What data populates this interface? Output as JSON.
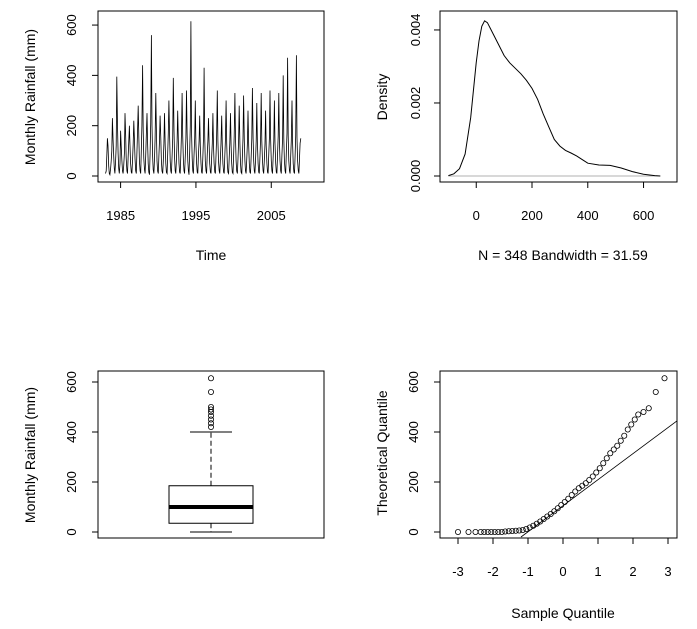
{
  "chart_data": [
    {
      "type": "line",
      "panel": "time-series",
      "xlabel": "Time",
      "ylabel": "Monthly Rainfall (mm)",
      "xlim": [
        1982,
        2012
      ],
      "ylim": [
        0,
        640
      ],
      "x_ticks": [
        1985,
        1995,
        2005
      ],
      "y_ticks": [
        0,
        200,
        400,
        600
      ],
      "x_start": 1983.0,
      "x_step": 0.08333,
      "series": [
        {
          "values": [
            10,
            20,
            80,
            150,
            120,
            40,
            10,
            5,
            30,
            60,
            100,
            230,
            140,
            80,
            30,
            10,
            60,
            120,
            395,
            200,
            90,
            30,
            10,
            50,
            180,
            120,
            60,
            20,
            10,
            40,
            90,
            250,
            170,
            70,
            20,
            10,
            70,
            140,
            200,
            120,
            50,
            15,
            10,
            60,
            130,
            220,
            150,
            70,
            20,
            10,
            90,
            170,
            280,
            160,
            60,
            20,
            10,
            100,
            200,
            440,
            180,
            70,
            25,
            10,
            80,
            160,
            250,
            130,
            50,
            15,
            5,
            90,
            210,
            560,
            200,
            80,
            25,
            10,
            70,
            150,
            330,
            180,
            60,
            20,
            10,
            80,
            140,
            240,
            150,
            60,
            20,
            10,
            60,
            130,
            250,
            120,
            50,
            15,
            10,
            90,
            170,
            300,
            160,
            60,
            20,
            10,
            80,
            150,
            390,
            180,
            70,
            20,
            10,
            70,
            140,
            260,
            130,
            50,
            15,
            10,
            90,
            170,
            330,
            160,
            60,
            20,
            10,
            80,
            150,
            340,
            170,
            60,
            20,
            5,
            100,
            200,
            615,
            180,
            70,
            20,
            10,
            80,
            150,
            300,
            130,
            50,
            15,
            10,
            80,
            140,
            240,
            120,
            50,
            15,
            10,
            70,
            150,
            430,
            160,
            60,
            20,
            10,
            80,
            140,
            230,
            130,
            50,
            15,
            10,
            70,
            130,
            250,
            120,
            50,
            15,
            10,
            80,
            150,
            340,
            140,
            60,
            20,
            10,
            70,
            130,
            240,
            120,
            50,
            15,
            10,
            80,
            140,
            300,
            130,
            50,
            15,
            10,
            70,
            130,
            250,
            120,
            50,
            15,
            10,
            80,
            160,
            330,
            150,
            60,
            20,
            10,
            70,
            140,
            280,
            130,
            50,
            15,
            10,
            80,
            150,
            320,
            140,
            60,
            20,
            10,
            70,
            130,
            260,
            120,
            50,
            15,
            10,
            80,
            150,
            350,
            150,
            60,
            20,
            10,
            70,
            140,
            290,
            130,
            50,
            15,
            10,
            80,
            150,
            330,
            140,
            60,
            20,
            10,
            70,
            130,
            260,
            120,
            50,
            15,
            10,
            80,
            150,
            340,
            150,
            60,
            20,
            10,
            70,
            140,
            300,
            130,
            50,
            15,
            10,
            80,
            160,
            330,
            140,
            60,
            20,
            10,
            80,
            150,
            400,
            150,
            60,
            20,
            10,
            90,
            170,
            470,
            160,
            60,
            20,
            10,
            80,
            140,
            300,
            130,
            50,
            15,
            10,
            80,
            160,
            480,
            150,
            60,
            20,
            10,
            70,
            130,
            150
          ]
        }
      ]
    },
    {
      "type": "line",
      "panel": "density",
      "xlabel": "N = 348   Bandwidth = 31.59",
      "ylabel": "Density",
      "xlim": [
        -130,
        720
      ],
      "ylim": [
        0,
        0.0043
      ],
      "x_ticks": [
        0,
        200,
        400,
        600
      ],
      "y_ticks": [
        0.0,
        0.002,
        0.004
      ],
      "y_tick_labels": [
        "0.000",
        "0.002",
        "0.004"
      ],
      "series": [
        {
          "x": [
            -100,
            -80,
            -60,
            -40,
            -20,
            0,
            10,
            20,
            30,
            40,
            50,
            60,
            80,
            100,
            120,
            140,
            160,
            180,
            200,
            220,
            240,
            260,
            280,
            300,
            320,
            340,
            360,
            380,
            400,
            440,
            480,
            520,
            560,
            600,
            640,
            660
          ],
          "y": [
            1e-05,
            6e-05,
            0.0002,
            0.0006,
            0.0016,
            0.0031,
            0.0037,
            0.0041,
            0.00425,
            0.0042,
            0.00405,
            0.0039,
            0.0036,
            0.0033,
            0.0031,
            0.00295,
            0.0028,
            0.00262,
            0.0024,
            0.0021,
            0.0017,
            0.00135,
            0.001,
            0.00082,
            0.0007,
            0.00063,
            0.00055,
            0.00045,
            0.00035,
            0.0003,
            0.00029,
            0.00022,
            0.00012,
            5e-05,
            1e-05,
            0.0
          ]
        }
      ]
    },
    {
      "type": "box",
      "panel": "boxplot",
      "ylabel": "Monthly Rainfall (mm)",
      "ylim": [
        -20,
        640
      ],
      "y_ticks": [
        0,
        200,
        400,
        600
      ],
      "min": 0,
      "q1": 35,
      "median": 100,
      "q3": 185,
      "whisker_high": 400,
      "outliers": [
        420,
        435,
        450,
        465,
        480,
        490,
        500,
        560,
        615
      ]
    },
    {
      "type": "scatter",
      "panel": "qq",
      "xlabel": "Sample Quantile",
      "ylabel": "Theoretical Quantile",
      "xlim": [
        -3.3,
        3.3
      ],
      "ylim": [
        -25,
        640
      ],
      "x_ticks": [
        -3,
        -2,
        -1,
        0,
        1,
        2,
        3
      ],
      "y_ticks": [
        0,
        200,
        400,
        600
      ],
      "reference_line": {
        "x": [
          -1.2,
          3.5
        ],
        "y": [
          -20,
          470
        ]
      },
      "x": [
        -3.0,
        -2.7,
        -2.5,
        -2.35,
        -2.25,
        -2.15,
        -2.05,
        -1.95,
        -1.85,
        -1.75,
        -1.65,
        -1.55,
        -1.45,
        -1.35,
        -1.25,
        -1.15,
        -1.05,
        -0.95,
        -0.85,
        -0.75,
        -0.65,
        -0.55,
        -0.45,
        -0.35,
        -0.25,
        -0.15,
        -0.05,
        0.05,
        0.15,
        0.25,
        0.35,
        0.45,
        0.55,
        0.65,
        0.75,
        0.85,
        0.95,
        1.05,
        1.15,
        1.25,
        1.35,
        1.45,
        1.55,
        1.65,
        1.75,
        1.85,
        1.95,
        2.05,
        2.15,
        2.3,
        2.45,
        2.65,
        2.9
      ],
      "y": [
        0,
        0,
        0,
        0,
        0,
        0,
        0,
        0,
        0,
        0,
        2,
        3,
        4,
        5,
        6,
        8,
        12,
        18,
        25,
        33,
        42,
        52,
        62,
        72,
        83,
        95,
        108,
        120,
        133,
        148,
        162,
        175,
        185,
        195,
        208,
        222,
        238,
        255,
        275,
        295,
        315,
        330,
        345,
        365,
        385,
        410,
        430,
        450,
        470,
        480,
        495,
        560,
        615
      ]
    }
  ]
}
